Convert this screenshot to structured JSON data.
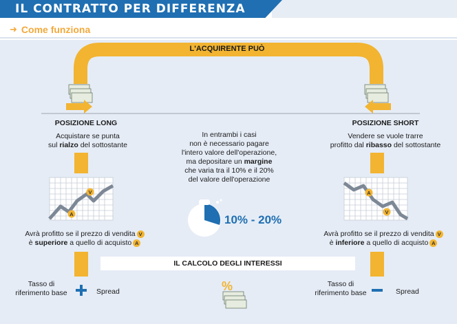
{
  "header": {
    "title": "IL CONTRATTO PER DIFFERENZA"
  },
  "subtitle": {
    "text": "Come funziona"
  },
  "diagram": {
    "top_label": "L'ACQUIRENTE PUÒ",
    "long": {
      "title": "POSIZIONE LONG",
      "desc_line1": "Acquistare se punta",
      "desc_line2_pre": "sul ",
      "desc_line2_bold": "rialzo",
      "desc_line2_post": " del sottostante",
      "profit_line1": "Avrà profitto se il prezzo di vendita",
      "profit_line2_pre": "è ",
      "profit_line2_bold": "superiore",
      "profit_line2_post": " a quello di acquisto",
      "formula_left": "Tasso di riferimento base",
      "formula_op": "+",
      "formula_right": "Spread"
    },
    "short": {
      "title": "POSIZIONE SHORT",
      "desc_line1": "Vendere se vuole trarre",
      "desc_line2_pre": "profitto dal ",
      "desc_line2_bold": "ribasso",
      "desc_line2_post": " del sottostante",
      "profit_line1": "Avrà profitto se il prezzo di vendita",
      "profit_line2_pre": "è ",
      "profit_line2_bold": "inferiore",
      "profit_line2_post": " a quello di acquisto",
      "formula_left": "Tasso di riferimento base",
      "formula_op": "—",
      "formula_right": "Spread"
    },
    "center": {
      "l1": "In entrambi i casi",
      "l2": "non è necessario pagare",
      "l3": "l'intero valore dell'operazione,",
      "l4_pre": "ma depositare un ",
      "l4_bold": "margine",
      "l5": "che varia tra il 10% e il 20%",
      "l6": "del valore dell'operazione",
      "pct": "10% - 20%"
    },
    "calc_label": "IL CALCOLO DEGLI INTERESSI",
    "badge_v": "V",
    "badge_a": "A",
    "percent_symbol": "%"
  },
  "colors": {
    "blue": "#1f6fb2",
    "yellow": "#f2b431",
    "panel": "#e5ecf6",
    "gray": "#7d8896"
  }
}
